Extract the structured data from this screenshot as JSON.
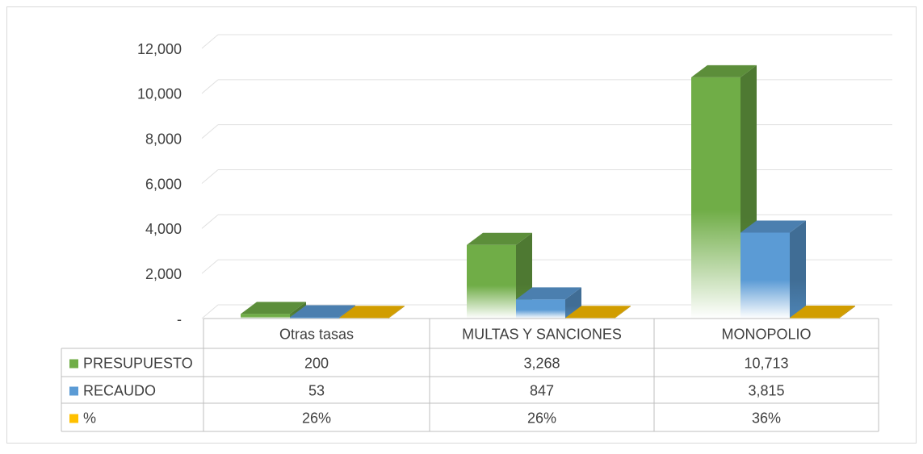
{
  "chart_data": {
    "type": "bar3d",
    "categories": [
      "Otras tasas",
      "MULTAS Y SANCIONES",
      "MONOPOLIO"
    ],
    "series": [
      {
        "name": "PRESUPUESTO",
        "color": "#70ad47",
        "values": [
          200,
          3268,
          10713
        ],
        "value_labels": [
          "200",
          "3,268",
          "10,713"
        ]
      },
      {
        "name": "RECAUDO",
        "color": "#5b9bd5",
        "values": [
          53,
          847,
          3815
        ],
        "value_labels": [
          "53",
          "847",
          "3,815"
        ]
      },
      {
        "name": "%",
        "color": "#ffc000",
        "values": [
          26,
          26,
          36
        ],
        "value_labels": [
          "26%",
          "26%",
          "36%"
        ]
      }
    ],
    "ylim": [
      0,
      12000
    ],
    "yticks": [
      {
        "value": 0,
        "label": "-"
      },
      {
        "value": 2000,
        "label": "2,000"
      },
      {
        "value": 4000,
        "label": "4,000"
      },
      {
        "value": 6000,
        "label": "6,000"
      },
      {
        "value": 8000,
        "label": "8,000"
      },
      {
        "value": 10000,
        "label": "10,000"
      },
      {
        "value": 12000,
        "label": "12,000"
      }
    ],
    "grid": true,
    "legend": "table"
  }
}
